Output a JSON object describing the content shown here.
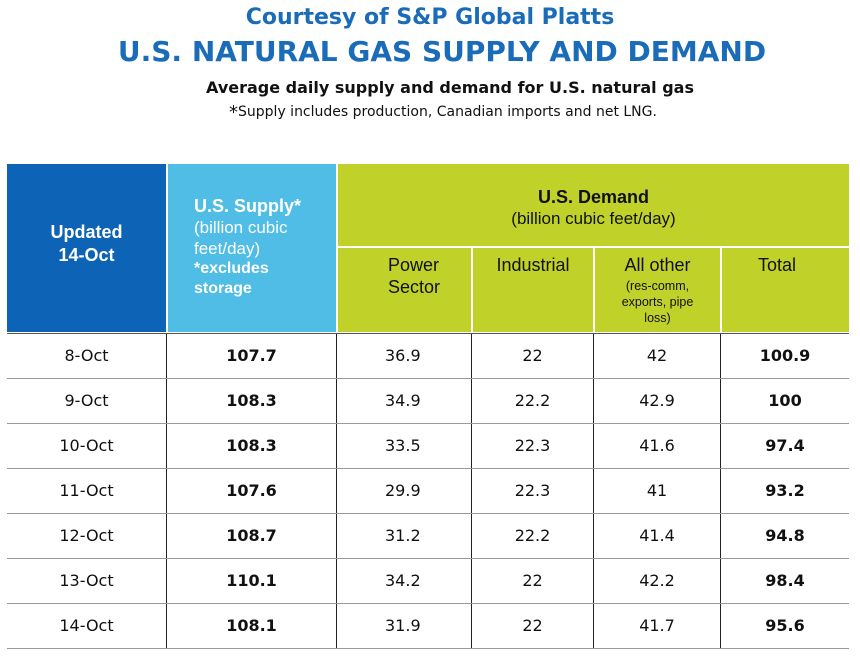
{
  "header": {
    "courtesy": "Courtesy of S&P Global Platts",
    "title": "U.S. NATURAL GAS SUPPLY AND DEMAND",
    "subtitle": "Average daily supply and demand for U.S. natural gas",
    "footnote_star": "*",
    "footnote_text": "Supply includes production, Canadian imports and net LNG."
  },
  "table": {
    "updated_label": "Updated",
    "updated_date": "14-Oct",
    "supply_title": "U.S. Supply*",
    "supply_units": "(billion cubic feet/day)",
    "supply_note": "*excludes storage",
    "demand_title": "U.S. Demand",
    "demand_units": "(billion cubic feet/day)",
    "col_power": "Power Sector",
    "col_industrial": "Industrial",
    "col_other": "All other",
    "col_other_note": "(res-comm, exports, pipe loss)",
    "col_total": "Total",
    "rows": [
      {
        "date": "8-Oct",
        "supply": "107.7",
        "power": "36.9",
        "industrial": "22",
        "other": "42",
        "total": "100.9"
      },
      {
        "date": "9-Oct",
        "supply": "108.3",
        "power": "34.9",
        "industrial": "22.2",
        "other": "42.9",
        "total": "100"
      },
      {
        "date": "10-Oct",
        "supply": "108.3",
        "power": "33.5",
        "industrial": "22.3",
        "other": "41.6",
        "total": "97.4"
      },
      {
        "date": "11-Oct",
        "supply": "107.6",
        "power": "29.9",
        "industrial": "22.3",
        "other": "41",
        "total": "93.2"
      },
      {
        "date": "12-Oct",
        "supply": "108.7",
        "power": "31.2",
        "industrial": "22.2",
        "other": "41.4",
        "total": "94.8"
      },
      {
        "date": "13-Oct",
        "supply": "110.1",
        "power": "34.2",
        "industrial": "22",
        "other": "42.2",
        "total": "98.4"
      },
      {
        "date": "14-Oct",
        "supply": "108.1",
        "power": "31.9",
        "industrial": "22",
        "other": "41.7",
        "total": "95.6"
      }
    ]
  },
  "colors": {
    "title_blue": "#1a6bb8",
    "updated_bg": "#0d63b5",
    "supply_bg": "#4fbde6",
    "demand_bg": "#c0d12a"
  }
}
